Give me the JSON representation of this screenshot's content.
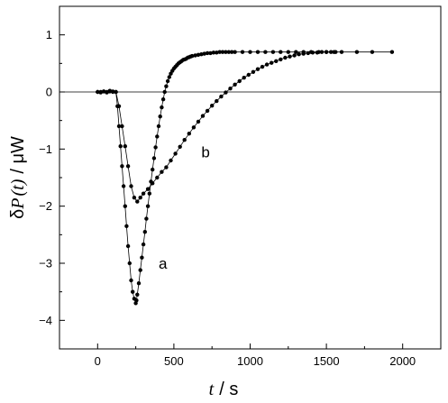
{
  "chart_data": {
    "type": "scatter",
    "title": "",
    "xlabel": {
      "symbol": "t",
      "unit": "/ s"
    },
    "ylabel": {
      "prefix": "δ",
      "symbol": "P",
      "arg": "(t)",
      "unit": "/ μW"
    },
    "xlim": [
      -250,
      2250
    ],
    "ylim": [
      -4.5,
      1.5
    ],
    "xticks": [
      0,
      500,
      1000,
      1500,
      2000
    ],
    "yticks": [
      -4,
      -3,
      -2,
      -1,
      0,
      1
    ],
    "grid": false,
    "zero_line": 0,
    "series": [
      {
        "name": "a",
        "label_at": [
          400,
          -3.0
        ],
        "x": [
          0,
          20,
          40,
          60,
          80,
          100,
          120,
          130,
          140,
          150,
          160,
          170,
          180,
          190,
          200,
          210,
          220,
          230,
          240,
          250,
          255,
          260,
          270,
          280,
          290,
          300,
          310,
          320,
          330,
          340,
          350,
          360,
          370,
          380,
          390,
          400,
          410,
          420,
          430,
          440,
          450,
          460,
          470,
          480,
          490,
          500,
          510,
          520,
          530,
          540,
          550,
          560,
          570,
          580,
          590,
          600,
          610,
          620,
          640,
          660,
          680,
          700,
          720,
          740,
          760,
          780,
          800,
          820,
          840,
          860,
          880,
          900,
          950,
          1000,
          1050,
          1100,
          1150,
          1200,
          1250,
          1300,
          1350,
          1400,
          1450,
          1500,
          1550
        ],
        "y": [
          0.0,
          -0.01,
          0.01,
          0.0,
          0.02,
          0.01,
          0.0,
          -0.25,
          -0.6,
          -0.95,
          -1.3,
          -1.65,
          -2.0,
          -2.35,
          -2.7,
          -3.0,
          -3.3,
          -3.5,
          -3.62,
          -3.7,
          -3.65,
          -3.55,
          -3.35,
          -3.12,
          -2.9,
          -2.67,
          -2.45,
          -2.22,
          -2.0,
          -1.78,
          -1.57,
          -1.36,
          -1.16,
          -0.97,
          -0.78,
          -0.6,
          -0.43,
          -0.27,
          -0.13,
          0.0,
          0.1,
          0.19,
          0.26,
          0.32,
          0.37,
          0.41,
          0.44,
          0.47,
          0.5,
          0.52,
          0.54,
          0.56,
          0.57,
          0.58,
          0.6,
          0.61,
          0.62,
          0.63,
          0.64,
          0.65,
          0.66,
          0.67,
          0.68,
          0.68,
          0.69,
          0.69,
          0.7,
          0.7,
          0.7,
          0.7,
          0.7,
          0.7,
          0.7,
          0.7,
          0.7,
          0.7,
          0.7,
          0.7,
          0.7,
          0.7,
          0.7,
          0.7,
          0.7,
          0.7,
          0.7
        ]
      },
      {
        "name": "b",
        "label_at": [
          680,
          -1.05
        ],
        "x": [
          0,
          20,
          40,
          60,
          80,
          100,
          120,
          140,
          160,
          180,
          200,
          220,
          240,
          260,
          280,
          300,
          330,
          360,
          390,
          420,
          450,
          480,
          510,
          540,
          570,
          600,
          630,
          660,
          690,
          720,
          750,
          780,
          810,
          840,
          870,
          900,
          930,
          960,
          990,
          1020,
          1050,
          1080,
          1110,
          1140,
          1170,
          1200,
          1230,
          1260,
          1290,
          1320,
          1350,
          1380,
          1410,
          1440,
          1470,
          1500,
          1530,
          1560,
          1600,
          1700,
          1800,
          1930
        ],
        "y": [
          0.0,
          0.0,
          0.01,
          -0.01,
          0.01,
          0.0,
          0.0,
          -0.25,
          -0.6,
          -0.95,
          -1.3,
          -1.65,
          -1.85,
          -1.92,
          -1.85,
          -1.78,
          -1.7,
          -1.6,
          -1.5,
          -1.4,
          -1.32,
          -1.2,
          -1.08,
          -0.96,
          -0.84,
          -0.73,
          -0.62,
          -0.52,
          -0.42,
          -0.33,
          -0.24,
          -0.16,
          -0.08,
          -0.01,
          0.06,
          0.13,
          0.19,
          0.25,
          0.3,
          0.35,
          0.4,
          0.44,
          0.48,
          0.51,
          0.54,
          0.57,
          0.6,
          0.62,
          0.64,
          0.66,
          0.67,
          0.68,
          0.69,
          0.69,
          0.7,
          0.7,
          0.7,
          0.7,
          0.7,
          0.7,
          0.7,
          0.7
        ]
      }
    ]
  }
}
